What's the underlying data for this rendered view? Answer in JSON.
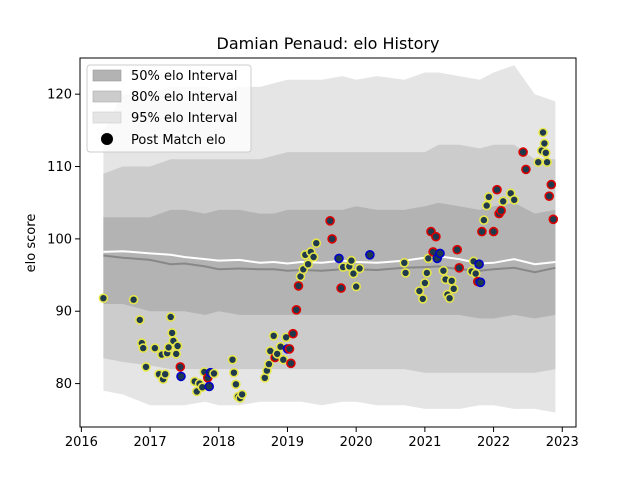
{
  "chart_data": {
    "type": "scatter",
    "title": "Damian Penaud: elo History",
    "xlabel": "",
    "ylabel": "elo score",
    "xlim": [
      2015.98,
      2023.2
    ],
    "ylim": [
      74,
      125
    ],
    "xticks": [
      2016,
      2017,
      2018,
      2019,
      2020,
      2021,
      2022,
      2023
    ],
    "yticks": [
      80,
      90,
      100,
      110,
      120
    ],
    "grid": false,
    "legend_position": "top-left",
    "legend": [
      {
        "label": "50% elo Interval",
        "kind": "band",
        "color": "#b3b3b3"
      },
      {
        "label": "80% elo Interval",
        "kind": "band",
        "color": "#cccccc"
      },
      {
        "label": "95% elo Interval",
        "kind": "band",
        "color": "#e5e5e5"
      },
      {
        "label": "Post Match elo",
        "kind": "marker",
        "color": "#000000"
      }
    ],
    "colors": {
      "band50": "#b3b3b3",
      "band80": "#cccccc",
      "band95": "#e5e5e5",
      "median_line": "#888888",
      "mean_line": "#ffffff",
      "point_fill": "#1f3a4d",
      "edge_blue": "#0000cc",
      "edge_red": "#dd0000",
      "edge_yellow": "#e6e64c"
    },
    "bands": {
      "x": [
        2016.32,
        2016.6,
        2017.0,
        2017.3,
        2017.5,
        2017.8,
        2018.0,
        2018.3,
        2018.6,
        2018.8,
        2019.0,
        2019.2,
        2019.5,
        2019.8,
        2020.0,
        2020.3,
        2020.7,
        2021.0,
        2021.2,
        2021.5,
        2021.8,
        2022.0,
        2022.3,
        2022.6,
        2022.9
      ],
      "upper95": [
        115,
        120,
        120,
        121,
        121,
        121,
        120.5,
        121,
        121,
        121.5,
        122,
        122,
        122,
        122.5,
        122,
        122.5,
        122,
        123,
        123,
        122.5,
        122,
        123,
        124,
        120,
        119
      ],
      "upper80": [
        109,
        110,
        110,
        111,
        111,
        111,
        111,
        111,
        111,
        111.5,
        112,
        112,
        112,
        112,
        112,
        112,
        112,
        112,
        113,
        113,
        112.5,
        113,
        113,
        111,
        111
      ],
      "upper50": [
        103,
        103,
        103,
        104,
        104,
        103.5,
        104,
        104,
        103.5,
        103.5,
        104,
        104,
        104,
        104,
        104.5,
        104,
        104,
        104.5,
        105,
        104.5,
        104,
        104.5,
        105,
        103.5,
        104
      ],
      "median": [
        97.7,
        97.4,
        97.1,
        96.5,
        96.6,
        96.2,
        95.8,
        95.9,
        95.8,
        95.8,
        95.6,
        95.7,
        95.6,
        95.8,
        95.8,
        95.7,
        96.0,
        96.1,
        96.2,
        95.8,
        95.6,
        95.8,
        96.0,
        95.4,
        96.0
      ],
      "mean": [
        98.2,
        98.3,
        98.0,
        97.8,
        97.5,
        97.2,
        97.0,
        97.1,
        96.7,
        96.8,
        96.6,
        96.8,
        96.7,
        97.0,
        96.8,
        96.7,
        97.0,
        97.4,
        97.6,
        97.2,
        96.6,
        96.7,
        97.2,
        96.5,
        96.8
      ],
      "lower50": [
        91,
        91,
        90,
        90,
        90,
        89.5,
        90,
        89.5,
        89.5,
        89.5,
        89.5,
        89.5,
        89.5,
        89.5,
        89.5,
        89.5,
        89.5,
        89.5,
        89.5,
        89.5,
        89,
        89,
        89.5,
        89,
        89.5
      ],
      "lower80": [
        83.5,
        83,
        82.5,
        82,
        82,
        82,
        82,
        82,
        82,
        82,
        82,
        82,
        82,
        82,
        82,
        82,
        82,
        81.5,
        81.5,
        81.5,
        81.5,
        81.5,
        81.5,
        81.5,
        82
      ],
      "lower95": [
        79,
        78.5,
        77,
        77,
        77,
        77.5,
        77,
        77,
        77.5,
        77.5,
        77.5,
        77.5,
        77,
        77.5,
        77.5,
        77,
        77,
        76.5,
        76.5,
        76.5,
        77,
        77,
        76.5,
        76.5,
        76
      ]
    },
    "points": [
      {
        "x": 2016.32,
        "y": 91.8,
        "edge": "yellow"
      },
      {
        "x": 2016.76,
        "y": 91.6,
        "edge": "yellow"
      },
      {
        "x": 2016.85,
        "y": 88.8,
        "edge": "yellow"
      },
      {
        "x": 2016.88,
        "y": 85.6,
        "edge": "yellow"
      },
      {
        "x": 2016.9,
        "y": 84.9,
        "edge": "yellow"
      },
      {
        "x": 2016.94,
        "y": 82.3,
        "edge": "yellow"
      },
      {
        "x": 2017.07,
        "y": 84.9,
        "edge": "yellow"
      },
      {
        "x": 2017.13,
        "y": 81.3,
        "edge": "yellow"
      },
      {
        "x": 2017.17,
        "y": 84.0,
        "edge": "yellow"
      },
      {
        "x": 2017.19,
        "y": 80.6,
        "edge": "yellow"
      },
      {
        "x": 2017.22,
        "y": 81.3,
        "edge": "yellow"
      },
      {
        "x": 2017.25,
        "y": 84.2,
        "edge": "yellow"
      },
      {
        "x": 2017.27,
        "y": 85.0,
        "edge": "yellow"
      },
      {
        "x": 2017.3,
        "y": 89.2,
        "edge": "yellow"
      },
      {
        "x": 2017.32,
        "y": 87.0,
        "edge": "yellow"
      },
      {
        "x": 2017.34,
        "y": 85.9,
        "edge": "yellow"
      },
      {
        "x": 2017.38,
        "y": 84.1,
        "edge": "yellow"
      },
      {
        "x": 2017.4,
        "y": 85.2,
        "edge": "yellow"
      },
      {
        "x": 2017.44,
        "y": 82.3,
        "edge": "red"
      },
      {
        "x": 2017.45,
        "y": 81.0,
        "edge": "blue"
      },
      {
        "x": 2017.65,
        "y": 80.3,
        "edge": "yellow"
      },
      {
        "x": 2017.68,
        "y": 78.9,
        "edge": "yellow"
      },
      {
        "x": 2017.72,
        "y": 80.0,
        "edge": "yellow"
      },
      {
        "x": 2017.76,
        "y": 79.5,
        "edge": "yellow"
      },
      {
        "x": 2017.79,
        "y": 81.6,
        "edge": "yellow"
      },
      {
        "x": 2017.84,
        "y": 80.8,
        "edge": "red"
      },
      {
        "x": 2017.86,
        "y": 79.6,
        "edge": "blue"
      },
      {
        "x": 2017.88,
        "y": 81.5,
        "edge": "blue"
      },
      {
        "x": 2017.93,
        "y": 81.4,
        "edge": "yellow"
      },
      {
        "x": 2018.2,
        "y": 83.3,
        "edge": "yellow"
      },
      {
        "x": 2018.22,
        "y": 81.5,
        "edge": "yellow"
      },
      {
        "x": 2018.25,
        "y": 79.9,
        "edge": "yellow"
      },
      {
        "x": 2018.28,
        "y": 78.2,
        "edge": "yellow"
      },
      {
        "x": 2018.31,
        "y": 78.0,
        "edge": "yellow"
      },
      {
        "x": 2018.34,
        "y": 78.5,
        "edge": "yellow"
      },
      {
        "x": 2018.67,
        "y": 80.8,
        "edge": "yellow"
      },
      {
        "x": 2018.7,
        "y": 81.8,
        "edge": "yellow"
      },
      {
        "x": 2018.73,
        "y": 82.7,
        "edge": "yellow"
      },
      {
        "x": 2018.75,
        "y": 84.5,
        "edge": "yellow"
      },
      {
        "x": 2018.8,
        "y": 86.6,
        "edge": "yellow"
      },
      {
        "x": 2018.82,
        "y": 83.6,
        "edge": "red"
      },
      {
        "x": 2018.85,
        "y": 84.1,
        "edge": "yellow"
      },
      {
        "x": 2018.9,
        "y": 85.1,
        "edge": "yellow"
      },
      {
        "x": 2018.94,
        "y": 83.3,
        "edge": "yellow"
      },
      {
        "x": 2018.98,
        "y": 86.4,
        "edge": "yellow"
      },
      {
        "x": 2019.0,
        "y": 84.8,
        "edge": "blue"
      },
      {
        "x": 2019.03,
        "y": 84.8,
        "edge": "red"
      },
      {
        "x": 2019.05,
        "y": 82.8,
        "edge": "red"
      },
      {
        "x": 2019.08,
        "y": 86.9,
        "edge": "red"
      },
      {
        "x": 2019.13,
        "y": 90.2,
        "edge": "red"
      },
      {
        "x": 2019.16,
        "y": 93.5,
        "edge": "red"
      },
      {
        "x": 2019.19,
        "y": 94.8,
        "edge": "yellow"
      },
      {
        "x": 2019.23,
        "y": 95.8,
        "edge": "yellow"
      },
      {
        "x": 2019.26,
        "y": 97.8,
        "edge": "yellow"
      },
      {
        "x": 2019.3,
        "y": 96.5,
        "edge": "yellow"
      },
      {
        "x": 2019.34,
        "y": 98.2,
        "edge": "yellow"
      },
      {
        "x": 2019.38,
        "y": 97.5,
        "edge": "yellow"
      },
      {
        "x": 2019.42,
        "y": 99.4,
        "edge": "yellow"
      },
      {
        "x": 2019.62,
        "y": 102.5,
        "edge": "red"
      },
      {
        "x": 2019.65,
        "y": 100.0,
        "edge": "red"
      },
      {
        "x": 2019.75,
        "y": 97.3,
        "edge": "blue"
      },
      {
        "x": 2019.78,
        "y": 93.2,
        "edge": "red"
      },
      {
        "x": 2019.81,
        "y": 96.1,
        "edge": "yellow"
      },
      {
        "x": 2019.9,
        "y": 96.2,
        "edge": "yellow"
      },
      {
        "x": 2019.93,
        "y": 97.0,
        "edge": "yellow"
      },
      {
        "x": 2019.96,
        "y": 95.2,
        "edge": "yellow"
      },
      {
        "x": 2020.0,
        "y": 93.4,
        "edge": "yellow"
      },
      {
        "x": 2020.05,
        "y": 95.9,
        "edge": "yellow"
      },
      {
        "x": 2020.2,
        "y": 97.8,
        "edge": "blue"
      },
      {
        "x": 2020.7,
        "y": 96.7,
        "edge": "yellow"
      },
      {
        "x": 2020.72,
        "y": 95.3,
        "edge": "yellow"
      },
      {
        "x": 2020.92,
        "y": 92.8,
        "edge": "yellow"
      },
      {
        "x": 2020.97,
        "y": 91.7,
        "edge": "yellow"
      },
      {
        "x": 2021.0,
        "y": 93.9,
        "edge": "yellow"
      },
      {
        "x": 2021.03,
        "y": 95.3,
        "edge": "yellow"
      },
      {
        "x": 2021.05,
        "y": 97.3,
        "edge": "yellow"
      },
      {
        "x": 2021.09,
        "y": 101.0,
        "edge": "red"
      },
      {
        "x": 2021.12,
        "y": 98.2,
        "edge": "red"
      },
      {
        "x": 2021.16,
        "y": 100.3,
        "edge": "red"
      },
      {
        "x": 2021.18,
        "y": 97.3,
        "edge": "blue"
      },
      {
        "x": 2021.22,
        "y": 98.0,
        "edge": "blue"
      },
      {
        "x": 2021.27,
        "y": 95.6,
        "edge": "yellow"
      },
      {
        "x": 2021.3,
        "y": 94.4,
        "edge": "yellow"
      },
      {
        "x": 2021.33,
        "y": 92.3,
        "edge": "yellow"
      },
      {
        "x": 2021.36,
        "y": 91.8,
        "edge": "yellow"
      },
      {
        "x": 2021.39,
        "y": 94.2,
        "edge": "yellow"
      },
      {
        "x": 2021.42,
        "y": 93.1,
        "edge": "yellow"
      },
      {
        "x": 2021.47,
        "y": 98.5,
        "edge": "red"
      },
      {
        "x": 2021.5,
        "y": 96.0,
        "edge": "red"
      },
      {
        "x": 2021.68,
        "y": 95.5,
        "edge": "yellow"
      },
      {
        "x": 2021.71,
        "y": 96.9,
        "edge": "yellow"
      },
      {
        "x": 2021.74,
        "y": 95.2,
        "edge": "yellow"
      },
      {
        "x": 2021.77,
        "y": 94.1,
        "edge": "red"
      },
      {
        "x": 2021.79,
        "y": 96.5,
        "edge": "blue"
      },
      {
        "x": 2021.81,
        "y": 94.0,
        "edge": "blue"
      },
      {
        "x": 2021.83,
        "y": 101.0,
        "edge": "red"
      },
      {
        "x": 2021.86,
        "y": 102.6,
        "edge": "yellow"
      },
      {
        "x": 2021.9,
        "y": 104.6,
        "edge": "yellow"
      },
      {
        "x": 2021.93,
        "y": 105.8,
        "edge": "yellow"
      },
      {
        "x": 2022.0,
        "y": 101.0,
        "edge": "red"
      },
      {
        "x": 2022.05,
        "y": 106.8,
        "edge": "red"
      },
      {
        "x": 2022.08,
        "y": 103.5,
        "edge": "red"
      },
      {
        "x": 2022.11,
        "y": 103.9,
        "edge": "red"
      },
      {
        "x": 2022.14,
        "y": 105.2,
        "edge": "yellow"
      },
      {
        "x": 2022.25,
        "y": 106.3,
        "edge": "yellow"
      },
      {
        "x": 2022.3,
        "y": 105.4,
        "edge": "yellow"
      },
      {
        "x": 2022.43,
        "y": 112.0,
        "edge": "red"
      },
      {
        "x": 2022.47,
        "y": 109.6,
        "edge": "red"
      },
      {
        "x": 2022.65,
        "y": 110.6,
        "edge": "yellow"
      },
      {
        "x": 2022.7,
        "y": 112.2,
        "edge": "yellow"
      },
      {
        "x": 2022.72,
        "y": 114.7,
        "edge": "yellow"
      },
      {
        "x": 2022.74,
        "y": 113.2,
        "edge": "yellow"
      },
      {
        "x": 2022.76,
        "y": 111.9,
        "edge": "yellow"
      },
      {
        "x": 2022.78,
        "y": 110.6,
        "edge": "yellow"
      },
      {
        "x": 2022.81,
        "y": 105.9,
        "edge": "red"
      },
      {
        "x": 2022.84,
        "y": 107.5,
        "edge": "red"
      },
      {
        "x": 2022.87,
        "y": 102.7,
        "edge": "red"
      }
    ]
  }
}
